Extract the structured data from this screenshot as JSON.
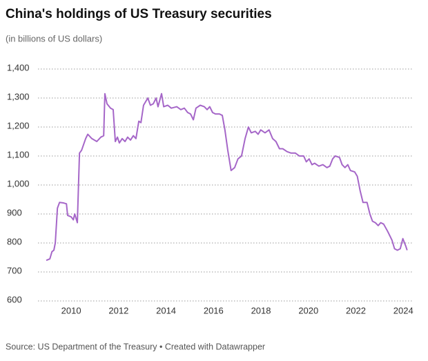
{
  "chart_data": {
    "type": "line",
    "title": "China's holdings of US Treasury securities",
    "subtitle": "(in billions of US dollars)",
    "source": "Source: US Department of the Treasury • Created with Datawrapper",
    "x": [
      2008.95,
      2009.1,
      2009.19,
      2009.27,
      2009.33,
      2009.42,
      2009.51,
      2009.68,
      2009.8,
      2009.85,
      2010.0,
      2010.09,
      2010.15,
      2010.26,
      2010.35,
      2010.44,
      2010.61,
      2010.7,
      2010.87,
      2011.08,
      2011.25,
      2011.37,
      2011.42,
      2011.51,
      2011.66,
      2011.77,
      2011.86,
      2011.95,
      2012.03,
      2012.15,
      2012.27,
      2012.38,
      2012.5,
      2012.62,
      2012.73,
      2012.85,
      2012.94,
      2013.05,
      2013.23,
      2013.34,
      2013.46,
      2013.58,
      2013.66,
      2013.81,
      2013.9,
      2014.07,
      2014.22,
      2014.45,
      2014.62,
      2014.77,
      2014.91,
      2015.03,
      2015.15,
      2015.26,
      2015.44,
      2015.61,
      2015.73,
      2015.84,
      2015.96,
      2016.08,
      2016.25,
      2016.37,
      2016.48,
      2016.6,
      2016.74,
      2016.89,
      2017.03,
      2017.18,
      2017.33,
      2017.47,
      2017.59,
      2017.76,
      2017.88,
      2017.99,
      2018.17,
      2018.34,
      2018.49,
      2018.63,
      2018.78,
      2018.92,
      2019.1,
      2019.27,
      2019.45,
      2019.62,
      2019.8,
      2019.91,
      2020.03,
      2020.15,
      2020.26,
      2020.44,
      2020.61,
      2020.78,
      2020.9,
      2021.02,
      2021.13,
      2021.31,
      2021.42,
      2021.54,
      2021.66,
      2021.77,
      2021.95,
      2022.06,
      2022.18,
      2022.3,
      2022.47,
      2022.59,
      2022.7,
      2022.82,
      2022.94,
      2023.05,
      2023.17,
      2023.34,
      2023.52,
      2023.63,
      2023.75,
      2023.87,
      2023.98,
      2024.1,
      2024.16
    ],
    "series": [
      {
        "name": "Holdings",
        "color": "#a566c8",
        "values": [
          740,
          745,
          770,
          775,
          800,
          920,
          940,
          938,
          935,
          895,
          890,
          880,
          900,
          870,
          1110,
          1120,
          1160,
          1175,
          1160,
          1150,
          1165,
          1170,
          1315,
          1280,
          1265,
          1260,
          1150,
          1165,
          1145,
          1160,
          1150,
          1165,
          1155,
          1170,
          1160,
          1220,
          1215,
          1275,
          1300,
          1275,
          1280,
          1300,
          1270,
          1315,
          1270,
          1275,
          1265,
          1270,
          1260,
          1265,
          1250,
          1245,
          1225,
          1265,
          1275,
          1270,
          1260,
          1270,
          1250,
          1245,
          1245,
          1240,
          1190,
          1120,
          1050,
          1060,
          1090,
          1100,
          1160,
          1200,
          1180,
          1185,
          1175,
          1190,
          1180,
          1190,
          1160,
          1150,
          1125,
          1125,
          1115,
          1110,
          1110,
          1100,
          1100,
          1080,
          1090,
          1070,
          1075,
          1065,
          1070,
          1060,
          1065,
          1090,
          1100,
          1095,
          1070,
          1060,
          1070,
          1050,
          1045,
          1030,
          980,
          940,
          940,
          900,
          875,
          870,
          860,
          870,
          865,
          840,
          810,
          780,
          775,
          780,
          815,
          790,
          775
        ]
      }
    ],
    "xlim": [
      2008.6,
      2024.4
    ],
    "xticks": [
      2010,
      2012,
      2014,
      2016,
      2018,
      2020,
      2022,
      2024
    ],
    "ylim": [
      600,
      1400
    ],
    "yticks": [
      600,
      700,
      800,
      900,
      {
        "value": 1000,
        "label": "1,000"
      },
      {
        "value": 1100,
        "label": "1,100"
      },
      {
        "value": 1200,
        "label": "1,200"
      },
      {
        "value": 1300,
        "label": "1,300"
      },
      {
        "value": 1400,
        "label": "1,400"
      }
    ],
    "grid": true
  }
}
